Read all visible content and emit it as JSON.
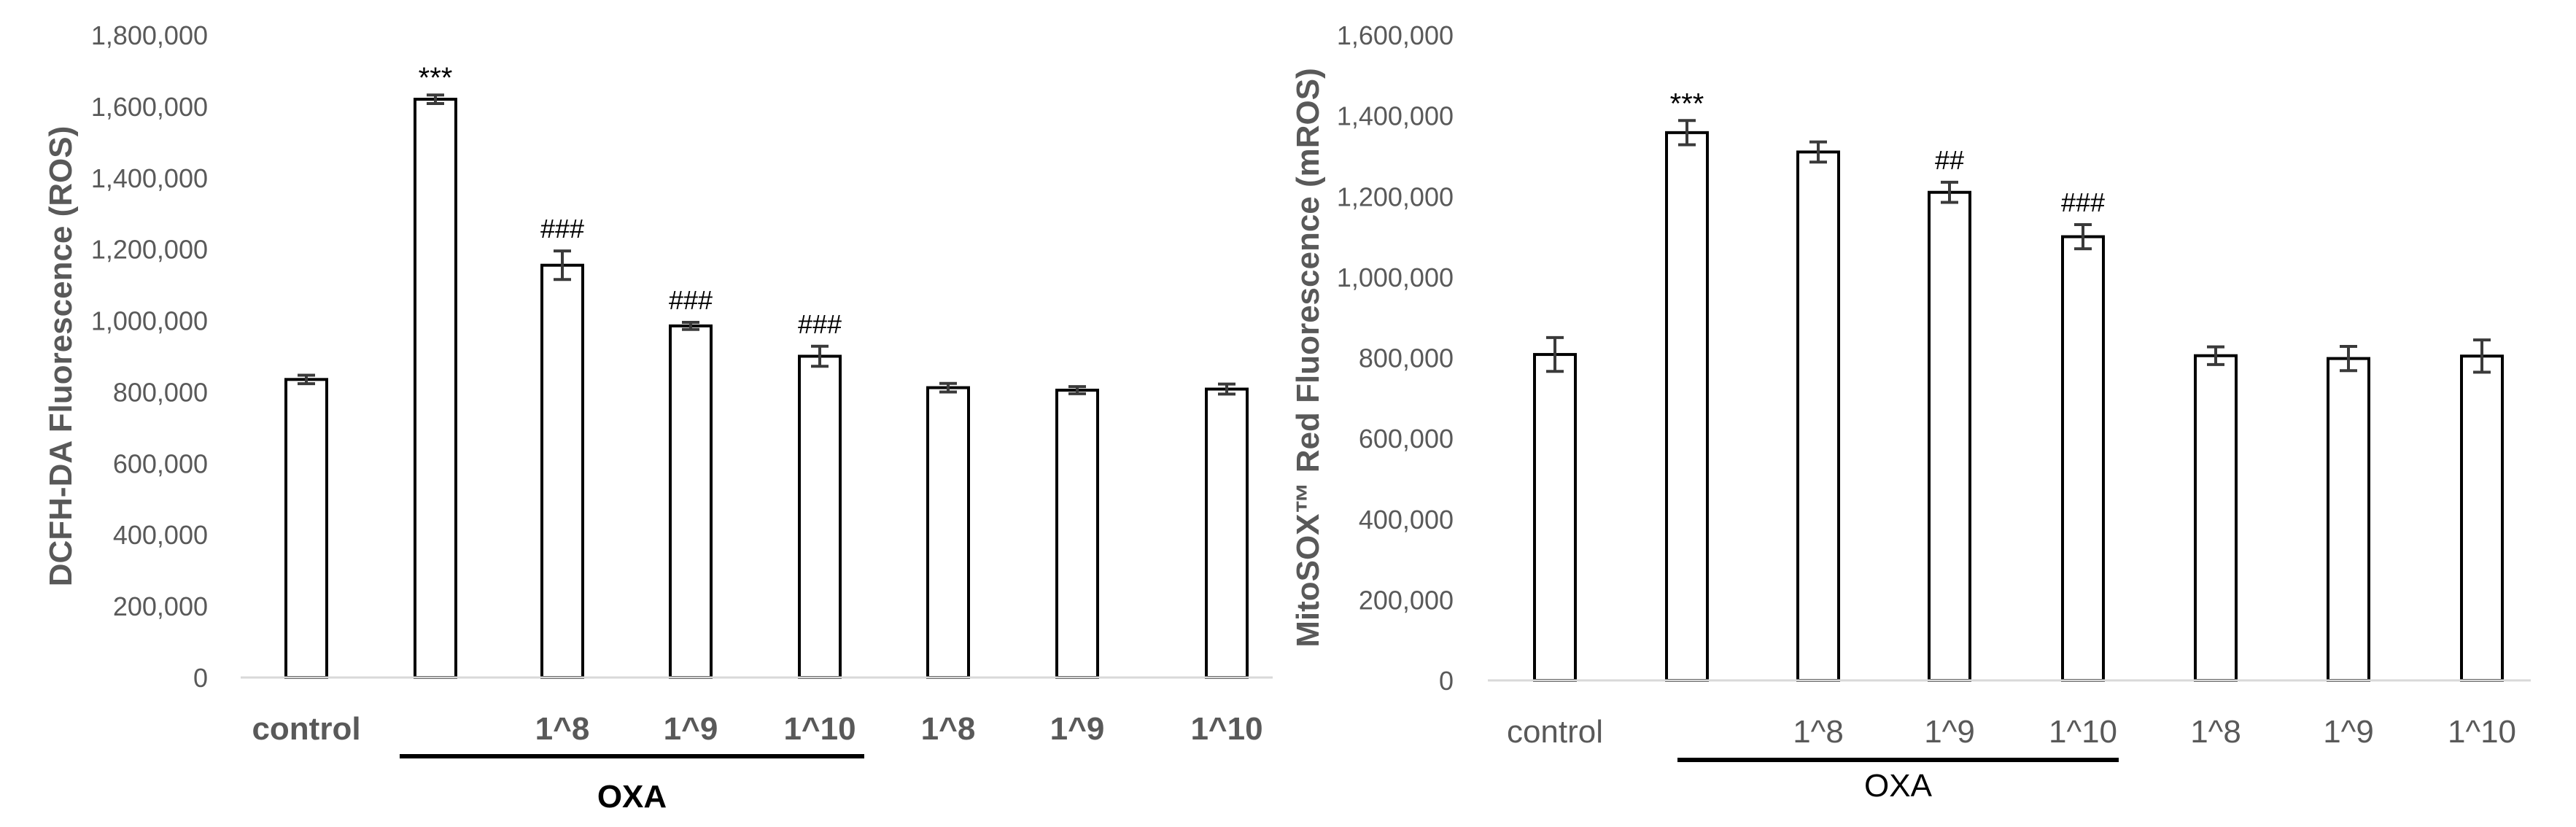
{
  "chart_data": [
    {
      "type": "bar",
      "ylabel": "DCFH-DA Fluorescence (ROS)",
      "ylim": [
        0,
        1800000
      ],
      "yticks": [
        "0",
        "200,000",
        "400,000",
        "600,000",
        "800,000",
        "1,000,000",
        "1,200,000",
        "1,400,000",
        "1,600,000",
        "1,800,000"
      ],
      "categories": [
        "control",
        "",
        "1^8",
        "1^9",
        "1^10",
        "1^8",
        "1^9",
        "1^10"
      ],
      "values": [
        835000,
        1620000,
        1155000,
        985000,
        900000,
        812000,
        805000,
        808000
      ],
      "errors": [
        12000,
        12000,
        40000,
        10000,
        28000,
        12000,
        10000,
        14000
      ],
      "annotations": [
        "",
        "***",
        "###",
        "###",
        "###",
        "",
        "",
        ""
      ],
      "group": {
        "label": "OXA",
        "from": 1,
        "to": 4
      },
      "grid": false,
      "legend": "none"
    },
    {
      "type": "bar",
      "ylabel": "MitoSOX™ Red Fluorescence (mROS)",
      "ylim": [
        0,
        1600000
      ],
      "yticks": [
        "0",
        "200,000",
        "400,000",
        "600,000",
        "800,000",
        "1,000,000",
        "1,200,000",
        "1,400,000",
        "1,600,000"
      ],
      "categories": [
        "control",
        "",
        "1^8",
        "1^9",
        "1^10",
        "1^8",
        "1^9",
        "1^10"
      ],
      "values": [
        808000,
        1358000,
        1310000,
        1210000,
        1100000,
        805000,
        798000,
        804000
      ],
      "errors": [
        42000,
        30000,
        25000,
        25000,
        30000,
        22000,
        30000,
        40000
      ],
      "annotations": [
        "",
        "***",
        "",
        "##",
        "###",
        "",
        "",
        ""
      ],
      "group": {
        "label": "OXA",
        "from": 1,
        "to": 4
      },
      "grid": false,
      "legend": "none"
    }
  ]
}
